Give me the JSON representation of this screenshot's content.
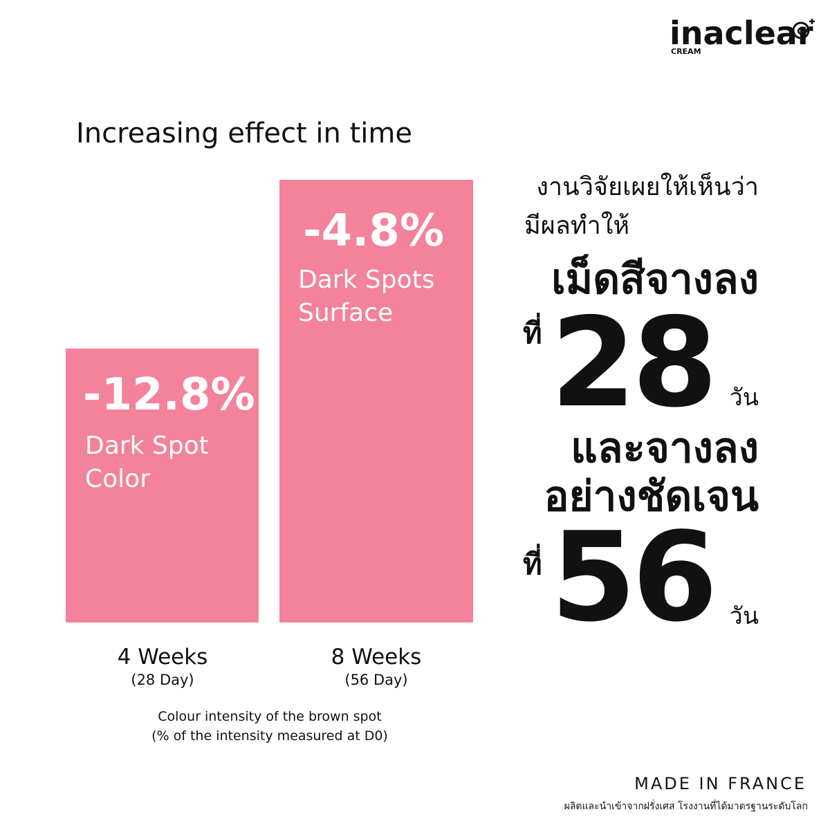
{
  "brand": {
    "name": "inaclear",
    "icon_letter": "G",
    "sub": "CREAM"
  },
  "title": "Increasing effect in time",
  "bars": [
    {
      "value_label": "-12.8%",
      "label": [
        "Dark Spot",
        "Color"
      ],
      "period": "4 Weeks",
      "days": "(28 Day)"
    },
    {
      "value_label": "-4.8%",
      "label": [
        "Dark Spots",
        "Surface"
      ],
      "period": "8 Weeks",
      "days": "(56 Day)"
    }
  ],
  "note": [
    "Colour intensity of the brown spot",
    "(% of the intensity measured at D0)"
  ],
  "thai": {
    "intro": [
      "งานวิจัยเผยให้เห็นว่า",
      "มีผลทำให้"
    ],
    "headline1": "เม็ดสีจางลง",
    "at1": "ที่",
    "num1": "28",
    "unit1": "วัน",
    "headline2": [
      "และจางลง",
      "อย่างชัดเจน"
    ],
    "at2": "ที่",
    "num2": "56",
    "unit2": "วัน"
  },
  "footer": {
    "made_in": "MADE IN FRANCE",
    "thai": "ผลิตและนำเข้าจากฝรั่งเศส โรงงานที่ได้มาตรฐานระดับโลก"
  }
}
